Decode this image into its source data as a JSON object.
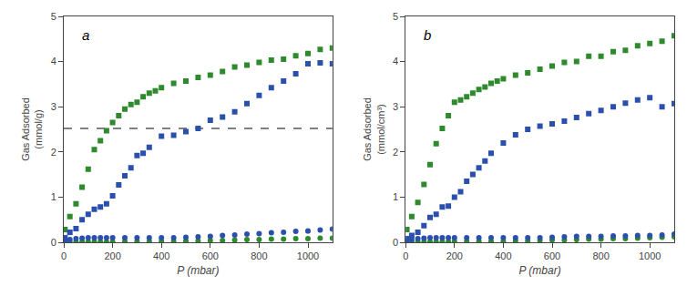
{
  "chart_data": [
    {
      "type": "scatter",
      "title": "a",
      "xlabel": "P (mbar)",
      "ylabel": "Gas Adsorbed\n(mmol/g)",
      "xlim": [
        0,
        1100
      ],
      "ylim": [
        0,
        5
      ],
      "xticks": [
        0,
        200,
        400,
        600,
        800,
        1000
      ],
      "yticks": [
        0,
        1,
        2,
        3,
        4,
        5
      ],
      "grid": false,
      "series": [
        {
          "color": "#2d8a2d",
          "marker": "square",
          "x": [
            5,
            25,
            50,
            75,
            100,
            125,
            150,
            175,
            200,
            225,
            250,
            275,
            300,
            325,
            350,
            375,
            400,
            450,
            500,
            550,
            600,
            650,
            700,
            750,
            800,
            850,
            900,
            950,
            1000,
            1050,
            1100
          ],
          "values": [
            0.28,
            0.57,
            0.85,
            1.22,
            1.62,
            2.05,
            2.25,
            2.47,
            2.65,
            2.8,
            2.95,
            3.05,
            3.1,
            3.22,
            3.3,
            3.35,
            3.42,
            3.52,
            3.57,
            3.65,
            3.7,
            3.78,
            3.88,
            3.92,
            3.98,
            4.03,
            4.05,
            4.13,
            4.18,
            4.27,
            4.3
          ]
        },
        {
          "color": "#2b4fad",
          "marker": "square",
          "x": [
            5,
            25,
            50,
            75,
            100,
            125,
            150,
            175,
            200,
            225,
            250,
            275,
            300,
            325,
            350,
            400,
            450,
            500,
            550,
            600,
            650,
            700,
            750,
            800,
            850,
            900,
            950,
            1000,
            1050,
            1100
          ],
          "values": [
            0.1,
            0.22,
            0.3,
            0.5,
            0.62,
            0.73,
            0.78,
            0.85,
            1.03,
            1.27,
            1.47,
            1.65,
            1.92,
            1.97,
            2.1,
            2.35,
            2.37,
            2.45,
            2.52,
            2.7,
            2.77,
            2.89,
            3.07,
            3.25,
            3.42,
            3.57,
            3.73,
            3.95,
            3.97,
            3.95
          ]
        },
        {
          "color": "#2d8a2d",
          "marker": "circle",
          "x": [
            5,
            25,
            50,
            75,
            100,
            125,
            150,
            175,
            200,
            250,
            300,
            350,
            400,
            450,
            500,
            550,
            600,
            650,
            700,
            750,
            800,
            850,
            900,
            950,
            1000,
            1050,
            1100
          ],
          "values": [
            0.0,
            0.0,
            0.01,
            0.01,
            0.01,
            0.01,
            0.01,
            0.01,
            0.01,
            0.02,
            0.02,
            0.02,
            0.02,
            0.02,
            0.03,
            0.03,
            0.04,
            0.04,
            0.05,
            0.06,
            0.06,
            0.07,
            0.07,
            0.08,
            0.08,
            0.09,
            0.09
          ]
        },
        {
          "color": "#2b4fad",
          "marker": "circle",
          "x": [
            5,
            25,
            50,
            75,
            100,
            125,
            150,
            175,
            200,
            250,
            300,
            350,
            400,
            450,
            500,
            550,
            600,
            650,
            700,
            750,
            800,
            850,
            900,
            950,
            1000,
            1050,
            1100
          ],
          "values": [
            0.03,
            0.06,
            0.08,
            0.09,
            0.1,
            0.1,
            0.1,
            0.1,
            0.1,
            0.1,
            0.1,
            0.1,
            0.1,
            0.1,
            0.11,
            0.12,
            0.13,
            0.15,
            0.16,
            0.18,
            0.19,
            0.21,
            0.22,
            0.24,
            0.25,
            0.27,
            0.29
          ]
        }
      ],
      "reference_lines": [
        {
          "y": 2.52,
          "line_style": "dashed",
          "color": "#000000"
        }
      ]
    },
    {
      "type": "scatter",
      "title": "b",
      "xlabel": "P (mbar)",
      "ylabel": "Gas Adsorbed\n(mmol/cm³)",
      "xlim": [
        0,
        1100
      ],
      "ylim": [
        0,
        5
      ],
      "xticks": [
        0,
        200,
        400,
        600,
        800,
        1000
      ],
      "yticks": [
        0,
        1,
        2,
        3,
        4,
        5
      ],
      "grid": false,
      "series": [
        {
          "color": "#2d8a2d",
          "marker": "square",
          "x": [
            5,
            25,
            50,
            75,
            100,
            125,
            150,
            175,
            200,
            225,
            250,
            275,
            300,
            325,
            350,
            375,
            400,
            450,
            500,
            550,
            600,
            650,
            700,
            750,
            800,
            850,
            900,
            950,
            1000,
            1050,
            1100
          ],
          "values": [
            0.28,
            0.57,
            0.88,
            1.28,
            1.72,
            2.18,
            2.52,
            2.8,
            3.1,
            3.15,
            3.22,
            3.3,
            3.38,
            3.44,
            3.52,
            3.57,
            3.62,
            3.7,
            3.75,
            3.83,
            3.9,
            3.98,
            4.0,
            4.12,
            4.12,
            4.22,
            4.25,
            4.35,
            4.4,
            4.45,
            4.57
          ]
        },
        {
          "color": "#2b4fad",
          "marker": "square",
          "x": [
            5,
            25,
            50,
            75,
            100,
            125,
            150,
            175,
            200,
            225,
            250,
            275,
            300,
            325,
            350,
            400,
            450,
            500,
            550,
            600,
            650,
            700,
            750,
            800,
            850,
            900,
            950,
            1000,
            1050,
            1100
          ],
          "values": [
            0.08,
            0.15,
            0.22,
            0.37,
            0.55,
            0.62,
            0.78,
            0.8,
            1.0,
            1.12,
            1.35,
            1.5,
            1.65,
            1.8,
            1.97,
            2.2,
            2.38,
            2.5,
            2.57,
            2.62,
            2.68,
            2.76,
            2.85,
            2.92,
            3.0,
            3.08,
            3.15,
            3.2,
            3.0,
            3.07
          ]
        },
        {
          "color": "#2d8a2d",
          "marker": "circle",
          "x": [
            5,
            25,
            50,
            75,
            100,
            125,
            150,
            175,
            200,
            250,
            300,
            350,
            400,
            450,
            500,
            550,
            600,
            650,
            700,
            750,
            800,
            850,
            900,
            950,
            1000,
            1050,
            1100
          ],
          "values": [
            0.0,
            0.0,
            0.01,
            0.01,
            0.01,
            0.01,
            0.01,
            0.01,
            0.02,
            0.02,
            0.02,
            0.02,
            0.02,
            0.03,
            0.03,
            0.04,
            0.05,
            0.05,
            0.06,
            0.07,
            0.07,
            0.08,
            0.08,
            0.09,
            0.1,
            0.11,
            0.12
          ]
        },
        {
          "color": "#2b4fad",
          "marker": "circle",
          "x": [
            5,
            25,
            50,
            75,
            100,
            125,
            150,
            175,
            200,
            250,
            300,
            350,
            400,
            450,
            500,
            550,
            600,
            650,
            700,
            750,
            800,
            850,
            900,
            950,
            1000,
            1050,
            1100
          ],
          "values": [
            0.03,
            0.06,
            0.08,
            0.09,
            0.1,
            0.1,
            0.1,
            0.1,
            0.1,
            0.1,
            0.1,
            0.1,
            0.1,
            0.1,
            0.1,
            0.1,
            0.11,
            0.12,
            0.13,
            0.13,
            0.13,
            0.14,
            0.14,
            0.15,
            0.15,
            0.16,
            0.18
          ]
        }
      ]
    }
  ]
}
